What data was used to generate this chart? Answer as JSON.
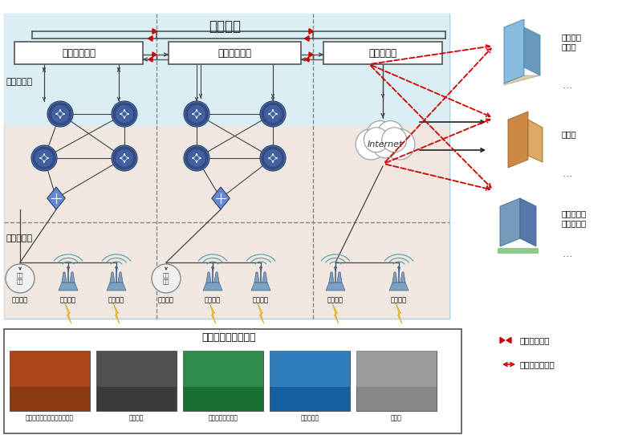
{
  "title": "安全分区",
  "bg_light_blue": "#daeef3",
  "bg_pink": "#fce4d6",
  "bg_white": "#ffffff",
  "zone_labels": [
    "生产控制大区",
    "管理信息大区",
    "互联网大区"
  ],
  "left_section_labels": [
    "网络骨干层",
    "网络接入层"
  ],
  "right_entity_labels": [
    "综合能源\n服务商",
    "聚合商",
    "能源互联网\n生态圈企业"
  ],
  "bottom_box_title": "电力物联网业务对象",
  "bottom_labels": [
    "电力生产、传输、运行、维护",
    "工业园区",
    "分布式可再生能源",
    "新能源汽车",
    "储能站"
  ],
  "legend1": "物理隔离装置",
  "legend2": "业务流向示意图",
  "access_z1": [
    "有线网络",
    "无线专网",
    "无线公网"
  ],
  "access_z2": [
    "有线网络",
    "无线专网",
    "无线公网"
  ],
  "access_z3": [
    "无线专网",
    "无线公网"
  ],
  "photo_colors": [
    "#8B3A10",
    "#5a5a5a",
    "#2e8b57",
    "#1e7ab0",
    "#808080"
  ],
  "red": "#cc0000",
  "dark_gray": "#444444",
  "router_blue": "#4a6fa5",
  "router_dark": "#2c4a7c"
}
